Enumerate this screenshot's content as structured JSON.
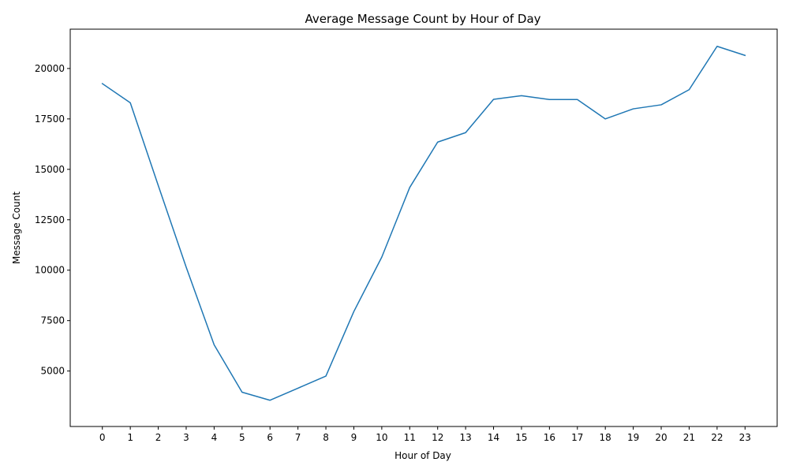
{
  "chart_data": {
    "type": "line",
    "title": "Average Message Count by Hour of Day",
    "xlabel": "Hour of Day",
    "ylabel": "Message Count",
    "x": [
      0,
      1,
      2,
      3,
      4,
      5,
      6,
      7,
      8,
      9,
      10,
      11,
      12,
      13,
      14,
      15,
      16,
      17,
      18,
      19,
      20,
      21,
      22,
      23
    ],
    "x_tick_labels": [
      "0",
      "1",
      "2",
      "3",
      "4",
      "5",
      "6",
      "7",
      "8",
      "9",
      "10",
      "11",
      "12",
      "13",
      "14",
      "15",
      "16",
      "17",
      "18",
      "19",
      "20",
      "21",
      "22",
      "23"
    ],
    "series": [
      {
        "color": "#1f77b4",
        "values": [
          19250,
          18300,
          14200,
          10150,
          6300,
          3950,
          3550,
          4150,
          4750,
          7950,
          10650,
          14100,
          16350,
          16820,
          18470,
          18650,
          18460,
          18460,
          17500,
          18000,
          18200,
          18950,
          21100,
          20650
        ]
      }
    ],
    "xlim": [
      -1.15,
      24.15
    ],
    "ylim": [
      2250,
      21950
    ],
    "y_ticks": [
      5000,
      7500,
      10000,
      12500,
      15000,
      17500,
      20000
    ],
    "y_tick_labels": [
      "5000",
      "7500",
      "10000",
      "12500",
      "15000",
      "17500",
      "20000"
    ],
    "grid": false,
    "legend": "none"
  }
}
